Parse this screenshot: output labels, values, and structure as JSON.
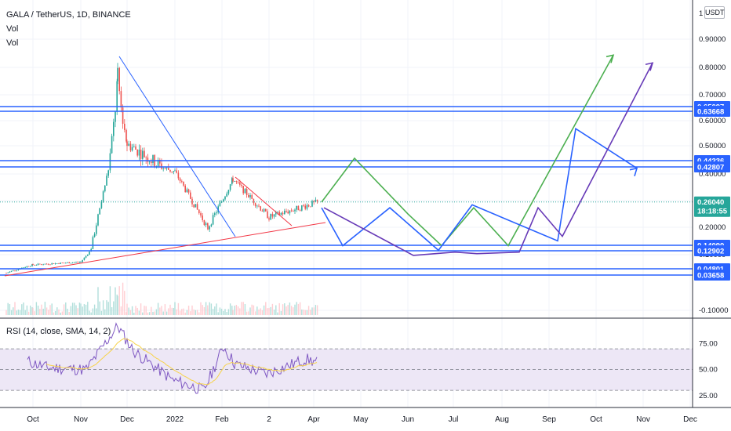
{
  "header": {
    "title": "GALA / TetherUS, 1D, BINANCE",
    "indicator_1": "Vol",
    "indicator_2": "Vol",
    "currency": "USDT"
  },
  "rsi_panel": {
    "label": "RSI (14, close, SMA, 14, 2)",
    "y_ticks": [
      "75.00",
      "50.00",
      "25.00"
    ],
    "levels": [
      70,
      50,
      30
    ]
  },
  "colors": {
    "up_candle": "#26a69a",
    "down_candle": "#ef5350",
    "hline": "#2962ff",
    "projection_green": "#4caf50",
    "projection_blue": "#2962ff",
    "projection_purple": "#673ab7",
    "trend_blue": "#2962ff",
    "trend_red": "#f23645",
    "rsi_line": "#7e57c2",
    "rsi_ma": "#f7d34a",
    "rsi_band": "#ede7f6"
  },
  "chart_data": {
    "type": "candlestick",
    "symbol": "GALA / TetherUS",
    "interval": "1D",
    "exchange": "BINANCE",
    "y_scale": "log",
    "y_ticks": [
      "0.90000",
      "0.80000",
      "0.70000",
      "0.60000",
      "0.50000",
      "0.40000",
      "0.30000",
      "0.20000",
      "0.10000",
      "-0.10000"
    ],
    "x_ticks": [
      "Oct",
      "Nov",
      "Dec",
      "2022",
      "Feb",
      "2",
      "Apr",
      "May",
      "Jun",
      "Jul",
      "Aug",
      "Sep",
      "Oct",
      "Nov",
      "Dec"
    ],
    "horizontal_levels": [
      {
        "label": "0.65097",
        "value": 0.65097
      },
      {
        "label": "0.63668",
        "value": 0.63668
      },
      {
        "label": "0.44236",
        "value": 0.44236
      },
      {
        "label": "0.42807",
        "value": 0.42807
      },
      {
        "label": "0.14090",
        "value": 0.1409
      },
      {
        "label": "0.12902",
        "value": 0.12902
      },
      {
        "label": "0.04801",
        "value": 0.04801
      },
      {
        "label": "0.03658",
        "value": 0.03658
      }
    ],
    "current_price": {
      "value": "0.26040",
      "countdown": "18:18:55"
    },
    "price_series_approx": [
      {
        "period": "Sep",
        "price": 0.04
      },
      {
        "period": "Oct",
        "price": 0.06
      },
      {
        "period": "Nov",
        "price": 0.07
      },
      {
        "period": "late Nov",
        "price": 0.75
      },
      {
        "period": "Dec",
        "price": 0.5
      },
      {
        "period": "2022",
        "price": 0.4
      },
      {
        "period": "late Jan",
        "price": 0.18
      },
      {
        "period": "Feb",
        "price": 0.36
      },
      {
        "period": "Mar",
        "price": 0.21
      },
      {
        "period": "Apr",
        "price": 0.26
      }
    ],
    "projections": [
      {
        "color": "green",
        "path": [
          0.26,
          0.45,
          0.22,
          0.14,
          0.24,
          0.14,
          0.83
        ]
      },
      {
        "color": "blue",
        "path": [
          0.24,
          0.14,
          0.24,
          0.13,
          0.25,
          0.15,
          0.56,
          0.42,
          0.84
        ]
      },
      {
        "color": "purple",
        "path": [
          0.24,
          0.1,
          0.12,
          0.11,
          0.12,
          0.24,
          0.16,
          0.8
        ]
      }
    ]
  }
}
